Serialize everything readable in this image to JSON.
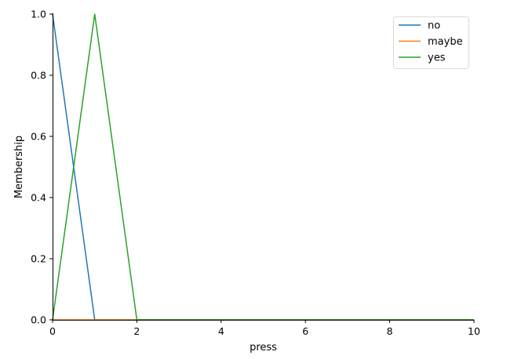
{
  "chart_data": {
    "type": "line",
    "title": "",
    "xlabel": "press",
    "ylabel": "Membership",
    "xlim": [
      0,
      10
    ],
    "ylim": [
      0,
      1
    ],
    "xticks": [
      0,
      2,
      4,
      6,
      8,
      10
    ],
    "yticks": [
      0.0,
      0.2,
      0.4,
      0.6,
      0.8,
      1.0
    ],
    "xtick_labels": [
      "0",
      "2",
      "4",
      "6",
      "8",
      "10"
    ],
    "ytick_labels": [
      "0.0",
      "0.2",
      "0.4",
      "0.6",
      "0.8",
      "1.0"
    ],
    "grid": false,
    "legend_position": "top-right",
    "series": [
      {
        "name": "no",
        "color": "#1f77b4",
        "x": [
          0,
          1,
          10
        ],
        "y": [
          1,
          0,
          0
        ]
      },
      {
        "name": "maybe",
        "color": "#ff7f0e",
        "x": [
          0,
          10
        ],
        "y": [
          0,
          0
        ]
      },
      {
        "name": "yes",
        "color": "#2ca02c",
        "x": [
          0,
          1,
          2,
          10
        ],
        "y": [
          0,
          1,
          0,
          0
        ]
      }
    ]
  }
}
